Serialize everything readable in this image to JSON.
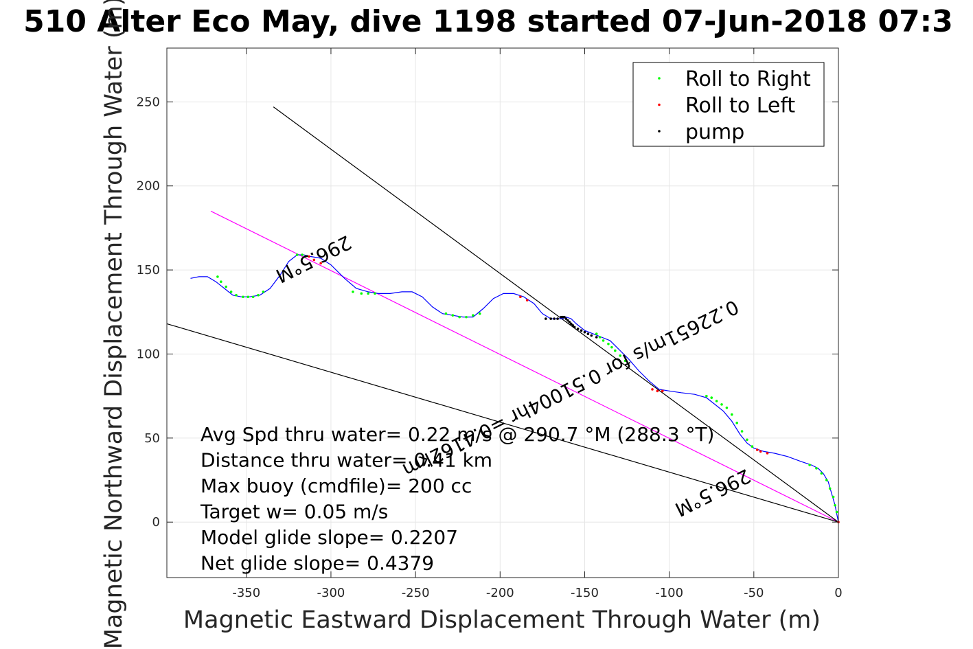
{
  "chart_data": {
    "type": "line",
    "title": "510 Alter Eco May, dive 1198 started 07-Jun-2018 07:3",
    "xlabel": "Magnetic Eastward Displacement Through Water (m)",
    "ylabel": "Magnetic Northward Displacement Through Water (m)",
    "xlim": [
      -397,
      0
    ],
    "ylim": [
      -33,
      282
    ],
    "xticks": [
      -350,
      -300,
      -250,
      -200,
      -150,
      -100,
      -50,
      0
    ],
    "yticks": [
      0,
      50,
      100,
      150,
      200,
      250
    ],
    "grid": true,
    "legend_position": "top-right",
    "legend": [
      {
        "label": "Roll to Right",
        "color": "#00ff00"
      },
      {
        "label": "Roll to Left",
        "color": "#ff0000"
      },
      {
        "label": "pump",
        "color": "#000000"
      }
    ],
    "track": {
      "color": "#0000ff",
      "x": [
        0,
        -1,
        -2,
        -4,
        -6,
        -9,
        -12,
        -16,
        -22,
        -30,
        -38,
        -44,
        -50,
        -54,
        -58,
        -63,
        -68,
        -73,
        -78,
        -85,
        -93,
        -100,
        -106,
        -112,
        -118,
        -124,
        -130,
        -135,
        -140,
        -145,
        -150,
        -155,
        -158,
        -161,
        -163,
        -166,
        -170,
        -175,
        -180,
        -186,
        -192,
        -198,
        -204,
        -210,
        -216,
        -222,
        -228,
        -234,
        -240,
        -246,
        -252,
        -258,
        -265,
        -272,
        -278,
        -285,
        -292,
        -300,
        -306,
        -312,
        -316,
        -320,
        -325,
        -330,
        -336,
        -342,
        -348,
        -353,
        -358,
        -363,
        -368,
        -373,
        -378,
        -383
      ],
      "y": [
        0,
        5,
        10,
        17,
        24,
        29,
        32,
        34,
        36,
        39,
        41,
        42,
        44,
        47,
        52,
        60,
        66,
        70,
        74,
        76,
        77,
        78,
        79,
        84,
        90,
        97,
        103,
        108,
        110,
        112,
        114,
        118,
        121,
        122,
        121,
        121,
        121,
        124,
        130,
        134,
        136,
        136,
        133,
        127,
        122,
        122,
        123,
        124,
        128,
        134,
        137,
        137,
        136,
        136,
        137,
        139,
        145,
        153,
        157,
        158,
        159,
        159,
        155,
        147,
        139,
        135,
        134,
        134,
        135,
        139,
        143,
        146,
        146,
        145
      ]
    },
    "roll_right_points": {
      "color": "#00ff00",
      "x": [
        -1,
        -2,
        -3,
        -5,
        -7,
        -10,
        -13,
        -17,
        -51,
        -54,
        -57,
        -60,
        -63,
        -66,
        -69,
        -72,
        -75,
        -78,
        -126,
        -129,
        -132,
        -134,
        -136,
        -139,
        -141,
        -143,
        -232,
        -228,
        -224,
        -220,
        -216,
        -212,
        -282,
        -278,
        -274,
        -287,
        -320,
        -317,
        -315,
        -340,
        -343,
        -346,
        -349,
        -352,
        -356,
        -359,
        -362,
        -365,
        -367
      ],
      "y": [
        6,
        10,
        15,
        20,
        25,
        29,
        32,
        34,
        45,
        49,
        54,
        59,
        64,
        68,
        70,
        72,
        74,
        75,
        96,
        99,
        102,
        104,
        106,
        108,
        110,
        112,
        124,
        123,
        122,
        122,
        123,
        124,
        136,
        136,
        136,
        137,
        159,
        159,
        158,
        137,
        135,
        134,
        134,
        134,
        135,
        137,
        140,
        143,
        146
      ]
    },
    "roll_left_points": {
      "color": "#ff0000",
      "x": [
        0,
        -42,
        -46,
        -48,
        -104,
        -107,
        -110,
        -184,
        -188,
        -306,
        -310,
        -313
      ],
      "y": [
        0,
        41,
        42,
        43,
        78,
        78,
        79,
        132,
        134,
        154,
        156,
        158
      ]
    },
    "pump_points": {
      "color": "#000000",
      "x": [
        -143,
        -146,
        -148,
        -150,
        -152,
        -154,
        -156,
        -157,
        -158,
        -159,
        -160,
        -161,
        -162,
        -163,
        -164,
        -166,
        -168,
        -170,
        -173
      ],
      "y": [
        110,
        111,
        112,
        113,
        114,
        115,
        116,
        117,
        118,
        119,
        120,
        121,
        122,
        122,
        122,
        121,
        121,
        121,
        121
      ]
    },
    "reference_lines": [
      {
        "name": "heading line",
        "color": "#ff00ff",
        "x": [
          0,
          -371
        ],
        "y": [
          0,
          185
        ]
      },
      {
        "name": "line 2",
        "color": "#000000",
        "x": [
          0,
          -334
        ],
        "y": [
          0,
          247
        ]
      },
      {
        "name": "line 3",
        "color": "#000000",
        "x": [
          0,
          -397
        ],
        "y": [
          0,
          118
        ]
      }
    ],
    "annotations": [
      {
        "text": "296.5°M",
        "x": -312,
        "y": 160,
        "angle": 153.5
      },
      {
        "text": "0.22651m/s for 0.51004hr =0.4162km",
        "x": -160,
        "y": 83,
        "angle": 153.5
      },
      {
        "text": "296.5°M",
        "x": -76,
        "y": 21,
        "angle": 153.5
      }
    ],
    "stats": [
      "Avg Spd thru water=  0.22 m/s @ 290.7 °M (288.3 °T)",
      "Distance thru water=  0.41 km",
      "Max buoy (cmdfile)= 200 cc",
      "Target w= 0.05 m/s",
      "Model glide slope= 0.2207",
      "Net glide slope= 0.4379"
    ]
  }
}
